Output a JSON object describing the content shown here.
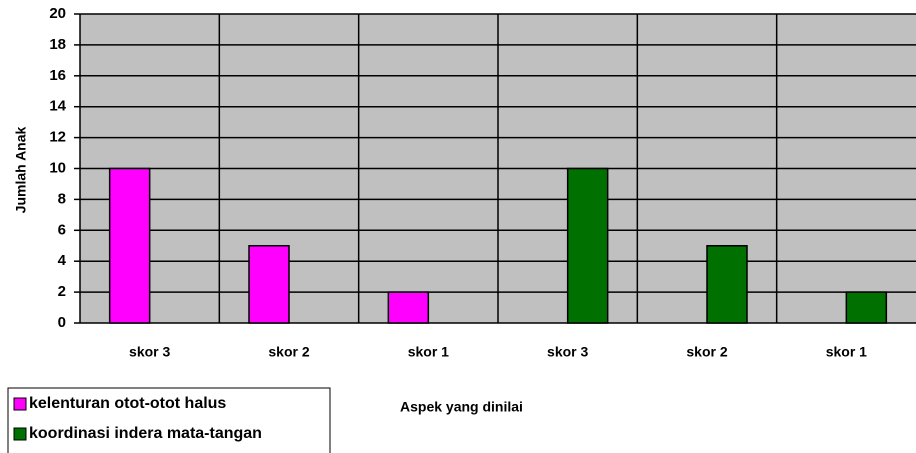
{
  "chart_data": {
    "type": "bar",
    "categories": [
      "skor 3",
      "skor 2",
      "skor 1",
      "skor 3",
      "skor 2",
      "skor 1"
    ],
    "series": [
      {
        "name": "kelenturan otot-otot halus",
        "color": "#ff00ff",
        "values": [
          10,
          5,
          2,
          null,
          null,
          null
        ]
      },
      {
        "name": "koordinasi indera mata-tangan",
        "color": "#007000",
        "values": [
          null,
          null,
          null,
          10,
          5,
          2
        ]
      }
    ],
    "xlabel": "Aspek yang dinilai",
    "ylabel": "Jumlah Anak",
    "ylim": [
      0,
      20
    ],
    "yticks": [
      0,
      2,
      4,
      6,
      8,
      10,
      12,
      14,
      16,
      18,
      20
    ],
    "grid": true,
    "legend": "bottom-left"
  }
}
